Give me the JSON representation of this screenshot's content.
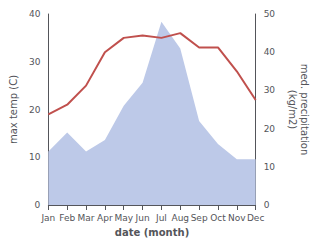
{
  "chart_data": {
    "type": "line",
    "xlabel": "date (month)",
    "ylabel": "max temp (C)",
    "y2label": "med. precipitation\n(kg/m2)",
    "categories": [
      "Jan",
      "Feb",
      "Mar",
      "Apr",
      "May",
      "Jun",
      "Jul",
      "Aug",
      "Sep",
      "Oct",
      "Nov",
      "Dec"
    ],
    "series": [
      {
        "type": "area",
        "axis": "y2",
        "color": "#bdc9e8",
        "values": [
          14,
          19,
          14,
          17,
          26,
          32,
          48,
          41,
          22,
          16,
          12,
          12
        ]
      },
      {
        "type": "line",
        "color": "#c0504d",
        "values": [
          19,
          21,
          25,
          32,
          35,
          35.5,
          35,
          36,
          33,
          33,
          28,
          22
        ]
      }
    ],
    "ylim": [
      0,
      40
    ],
    "yticks": [
      0,
      10,
      20,
      30,
      40
    ],
    "y2lim": [
      0,
      50
    ],
    "y2ticks": [
      0,
      10,
      20,
      30,
      40,
      50
    ],
    "grid": false
  }
}
